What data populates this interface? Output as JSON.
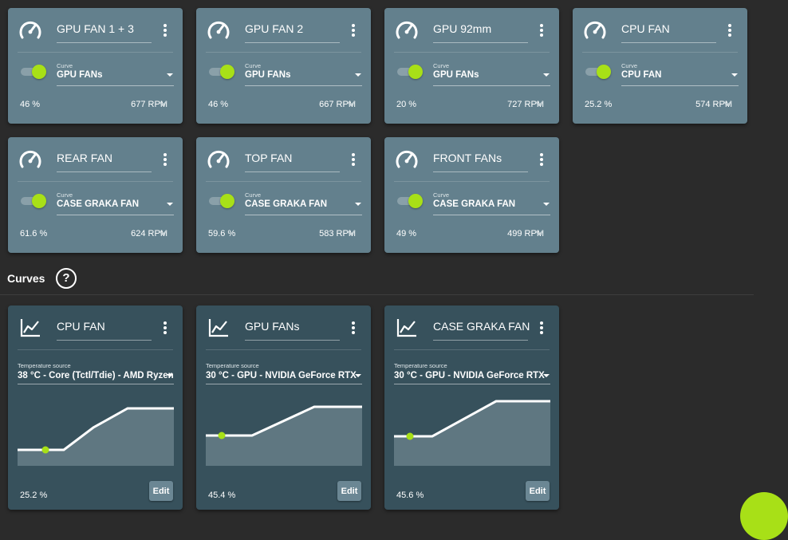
{
  "fan_cards": [
    {
      "title": "GPU FAN 1 + 3",
      "curve_label": "Curve",
      "curve_value": "GPU FANs",
      "percent": "46 %",
      "rpm": "677 RPM"
    },
    {
      "title": "GPU FAN 2",
      "curve_label": "Curve",
      "curve_value": "GPU FANs",
      "percent": "46 %",
      "rpm": "667 RPM"
    },
    {
      "title": "GPU 92mm",
      "curve_label": "Curve",
      "curve_value": "GPU FANs",
      "percent": "20 %",
      "rpm": "727 RPM"
    },
    {
      "title": "CPU FAN",
      "curve_label": "Curve",
      "curve_value": "CPU FAN",
      "percent": "25.2 %",
      "rpm": "574 RPM"
    },
    {
      "title": "REAR FAN",
      "curve_label": "Curve",
      "curve_value": "CASE GRAKA FAN",
      "percent": "61.6 %",
      "rpm": "624 RPM"
    },
    {
      "title": "TOP FAN",
      "curve_label": "Curve",
      "curve_value": "CASE GRAKA FAN",
      "percent": "59.6 %",
      "rpm": "583 RPM"
    },
    {
      "title": "FRONT FANs",
      "curve_label": "Curve",
      "curve_value": "CASE GRAKA FAN",
      "percent": "49 %",
      "rpm": "499 RPM"
    }
  ],
  "curves_section": {
    "title": "Curves",
    "help_glyph": "?"
  },
  "curve_cards": [
    {
      "title": "CPU FAN",
      "source_label": "Temperature source",
      "source_value": "38 °C - Core (Tctl/Tdie) - AMD Ryzen",
      "percent": "25.2 %",
      "edit_label": "Edit"
    },
    {
      "title": "GPU FANs",
      "source_label": "Temperature source",
      "source_value": "30 °C - GPU - NVIDIA GeForce RTX",
      "percent": "45.4 %",
      "edit_label": "Edit"
    },
    {
      "title": "CASE GRAKA FAN",
      "source_label": "Temperature source",
      "source_value": "30 °C - GPU - NVIDIA GeForce RTX",
      "percent": "45.6 %",
      "edit_label": "Edit"
    }
  ],
  "icons": {
    "fan_card": "speedometer-icon",
    "curve_card": "line-chart-icon",
    "menu": "more-vertical-icon",
    "expand": "chevron-down-icon",
    "help": "help-circle-icon"
  },
  "colors": {
    "accent": "#a8e017",
    "fan_card_bg": "#63808d",
    "curve_card_bg": "#37515c",
    "page_bg": "#2b2b2b"
  }
}
